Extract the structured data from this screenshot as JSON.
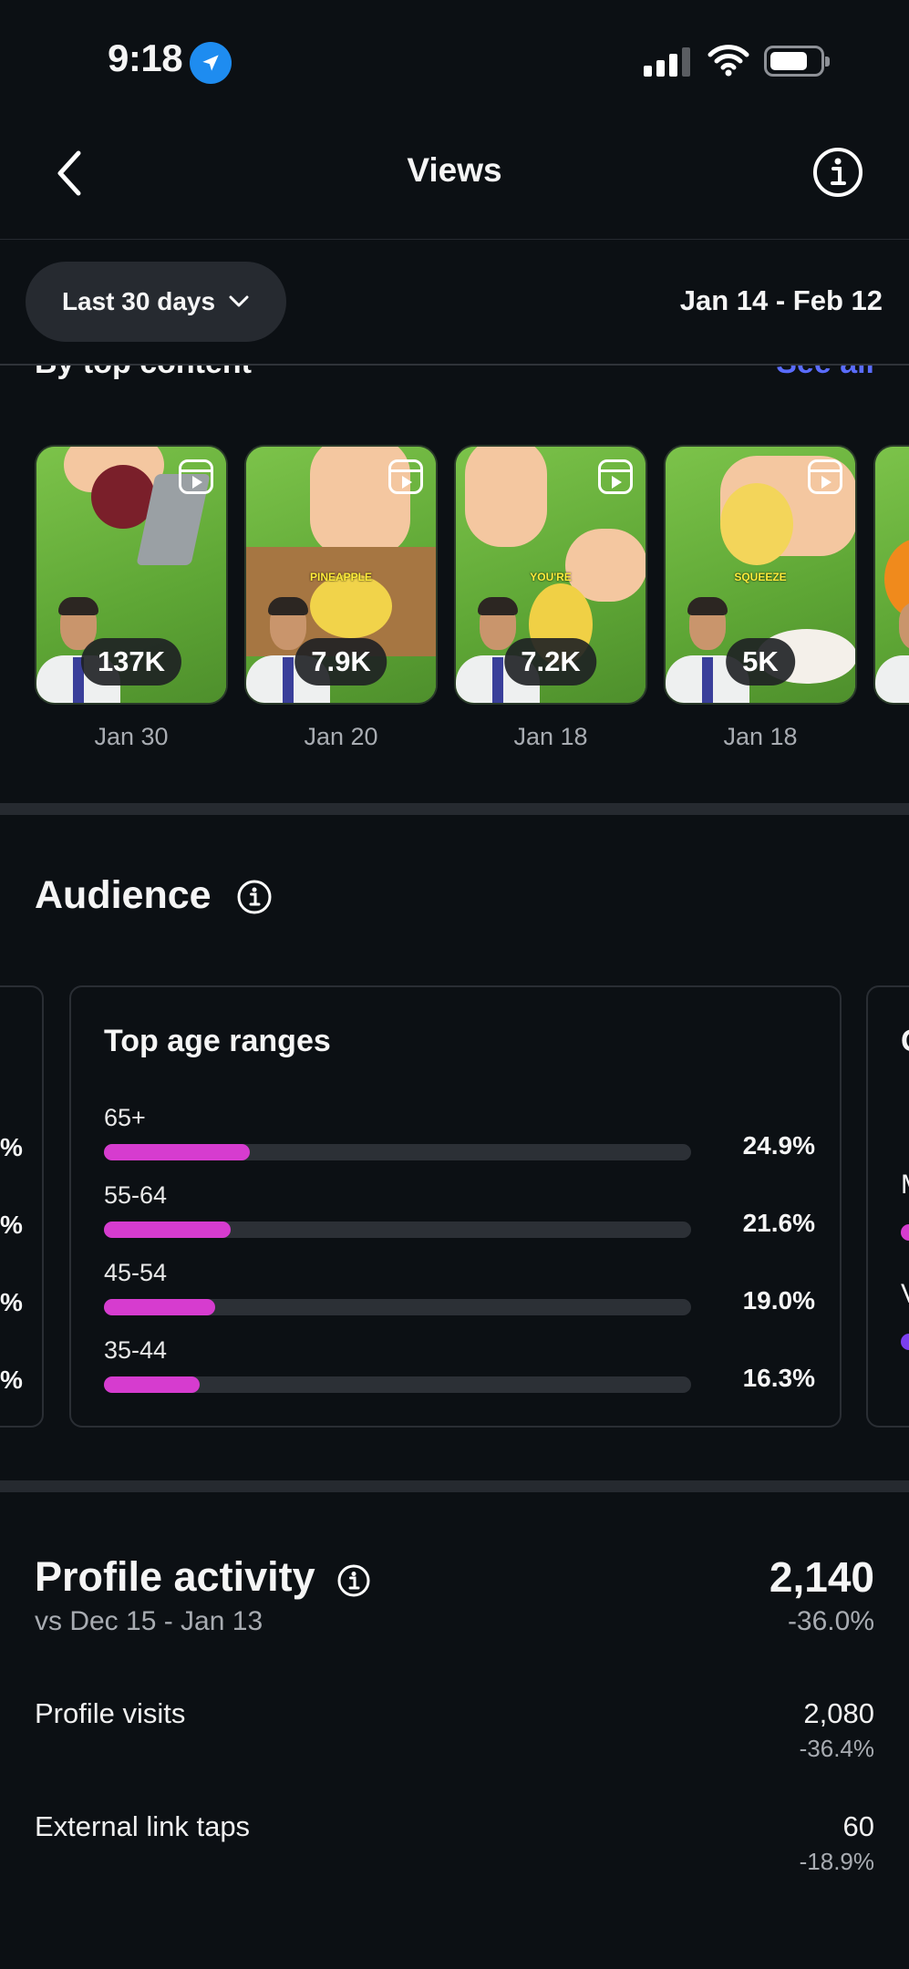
{
  "status_bar": {
    "time": "9:18"
  },
  "header": {
    "title": "Views"
  },
  "filter": {
    "range_label": "Last 30 days",
    "date_range": "Jan 14 - Feb 12"
  },
  "top_content": {
    "heading": "By top content",
    "see_all": "See all",
    "items": [
      {
        "views": "137K",
        "date": "Jan 30",
        "caption": ""
      },
      {
        "views": "7.9K",
        "date": "Jan 20",
        "caption": "PINEAPPLE"
      },
      {
        "views": "7.2K",
        "date": "Jan 18",
        "caption": "YOU'RE"
      },
      {
        "views": "5K",
        "date": "Jan 18",
        "caption": "SQUEEZE"
      }
    ]
  },
  "audience": {
    "title": "Audience",
    "age_card": {
      "title": "Top age ranges",
      "rows": [
        {
          "label": "65+",
          "pct": "24.9%",
          "fraction": 0.249
        },
        {
          "label": "55-64",
          "pct": "21.6%",
          "fraction": 0.216
        },
        {
          "label": "45-54",
          "pct": "19.0%",
          "fraction": 0.19
        },
        {
          "label": "35-44",
          "pct": "16.3%",
          "fraction": 0.163
        }
      ]
    },
    "left_card_edge": [
      "%",
      "%",
      "%",
      "%"
    ],
    "right_card_edge": {
      "title_initial": "G",
      "row1_initial": "M",
      "row2_initial": "V"
    },
    "colors": {
      "bar_fill": "#d63ccf",
      "bar_track": "#2c3036",
      "secondary_bar": "#7b3ff0"
    }
  },
  "profile_activity": {
    "title": "Profile activity",
    "comparison": "vs Dec 15 - Jan 13",
    "total": "2,140",
    "total_change": "-36.0%",
    "rows": [
      {
        "label": "Profile visits",
        "value": "2,080",
        "change": "-36.4%"
      },
      {
        "label": "External link taps",
        "value": "60",
        "change": "-18.9%"
      }
    ]
  },
  "colors": {
    "background": "#0c1014",
    "accent_link": "#5a6cff",
    "location_icon": "#1e8cf0"
  }
}
